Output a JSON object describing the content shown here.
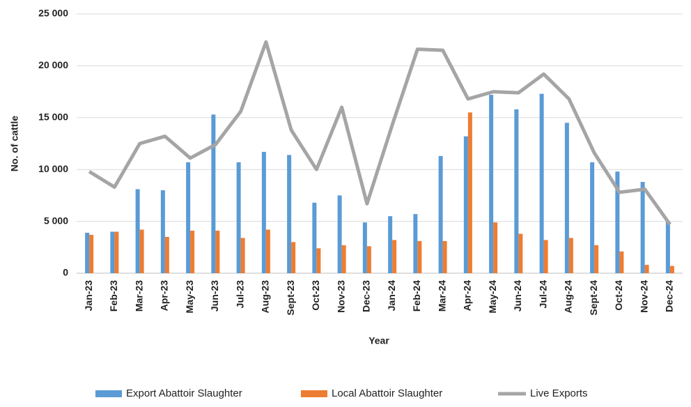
{
  "chart_data": {
    "type": "bar_line",
    "y_label": "No. of cattle",
    "x_label": "Year",
    "categories": [
      "Jan-23",
      "Feb-23",
      "Mar-23",
      "Apr-23",
      "May-23",
      "Jun-23",
      "Jul-23",
      "Aug-23",
      "Sept-23",
      "Oct-23",
      "Nov-23",
      "Dec-23",
      "Jan-24",
      "Feb-24",
      "Mar-24",
      "Apr-24",
      "May-24",
      "Jun-24",
      "Jul-24",
      "Aug-24",
      "Sept-24",
      "Oct-24",
      "Nov-24",
      "Dec-24"
    ],
    "series": [
      {
        "name": "Export Abattoir Slaughter",
        "type": "bar",
        "color": "#5b9bd5",
        "values": [
          3900,
          4000,
          8100,
          8000,
          10700,
          15300,
          10700,
          11700,
          11400,
          6800,
          7500,
          4900,
          5500,
          5700,
          11300,
          13200,
          17200,
          15800,
          17300,
          14500,
          10700,
          9800,
          8800,
          5000
        ]
      },
      {
        "name": "Local Abattoir Slaughter",
        "type": "bar",
        "color": "#ed7d31",
        "values": [
          3700,
          4000,
          4200,
          3500,
          4100,
          4100,
          3400,
          4200,
          3000,
          2400,
          2700,
          2600,
          3200,
          3100,
          3100,
          15500,
          4900,
          3800,
          3200,
          3400,
          2700,
          2100,
          800,
          700
        ]
      },
      {
        "name": "Live Exports",
        "type": "line",
        "color": "#a5a5a5",
        "values": [
          9800,
          8300,
          12500,
          13200,
          11100,
          12400,
          15600,
          22300,
          13800,
          10000,
          16000,
          6700,
          14300,
          21600,
          21500,
          16800,
          17500,
          17400,
          19200,
          16800,
          11600,
          7800,
          8100,
          4700
        ]
      }
    ],
    "ylim": [
      0,
      25000
    ],
    "yticks": [
      0,
      {
        "value": 5000,
        "label": "5 000"
      },
      {
        "value": 10000,
        "label": "10 000"
      },
      {
        "value": 15000,
        "label": "15 000"
      },
      {
        "value": 20000,
        "label": "20 000"
      },
      {
        "value": 25000,
        "label": "25 000"
      }
    ],
    "grid": true,
    "legend": "bottom"
  }
}
